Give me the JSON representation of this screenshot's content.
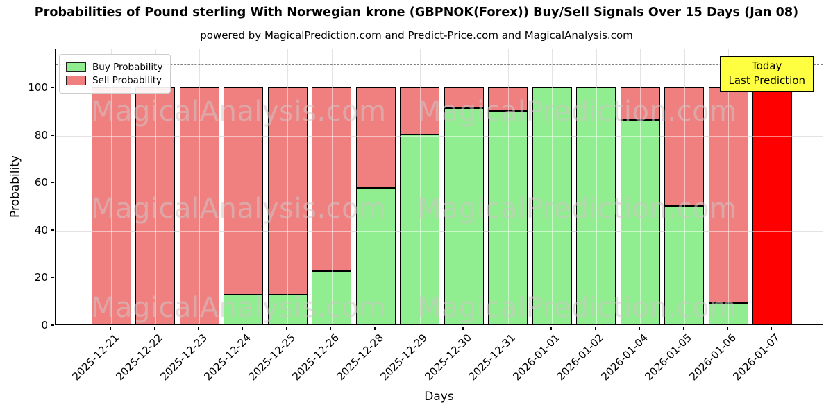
{
  "header": {
    "title": "Probabilities of Pound sterling With Norwegian krone (GBPNOK(Forex)) Buy/Sell Signals Over 15 Days (Jan 08)",
    "subtitle": "powered by MagicalPrediction.com and Predict-Price.com and MagicalAnalysis.com"
  },
  "chart_data": {
    "type": "bar",
    "stacked": true,
    "title": "Probabilities of Pound sterling With Norwegian krone (GBPNOK(Forex)) Buy/Sell Signals Over 15 Days (Jan 08)",
    "xlabel": "Days",
    "ylabel": "Probability",
    "ylim": [
      0,
      116.5
    ],
    "yticks": [
      0,
      20,
      40,
      60,
      80,
      100
    ],
    "grid": true,
    "legend_position": "upper left",
    "threshold_line": {
      "y": 110,
      "style": "dashed",
      "color": "#7f7f7f"
    },
    "categories": [
      "2025-12-21",
      "2025-12-22",
      "2025-12-23",
      "2025-12-24",
      "2025-12-25",
      "2025-12-26",
      "2025-12-28",
      "2025-12-29",
      "2025-12-30",
      "2025-12-31",
      "2026-01-01",
      "2026-01-02",
      "2026-01-04",
      "2026-01-05",
      "2026-01-06",
      "2026-01-07"
    ],
    "series": [
      {
        "name": "Buy Probability",
        "color": "#90EE90",
        "values": [
          0,
          0,
          0,
          12.5,
          12.5,
          22.5,
          57.5,
          80,
          91,
          90,
          100,
          100,
          86,
          50,
          9,
          0
        ]
      },
      {
        "name": "Sell Probability",
        "color": "#F08080",
        "values": [
          100,
          100,
          100,
          87.5,
          87.5,
          77.5,
          42.5,
          20,
          9,
          10,
          0,
          0,
          14,
          50,
          91,
          100
        ]
      }
    ],
    "today_bar": {
      "category": "2026-01-07",
      "index": 15,
      "color": "#FF0000",
      "value": 100
    }
  },
  "legend": {
    "buy_label": "Buy Probability",
    "sell_label": "Sell Probability"
  },
  "annotation": {
    "line1": "Today",
    "line2": "Last Prediction",
    "bg_color": "#ffff42"
  },
  "watermarks": {
    "left": "MagicalAnalysis.com",
    "right": "MagicalPrediction.com"
  },
  "axis": {
    "ylabel": "Probability",
    "xlabel": "Days"
  },
  "colors": {
    "buy": "#90EE90",
    "sell": "#F08080",
    "today": "#FF0000",
    "grid": "#c6c6c6",
    "edge": "#000000"
  }
}
